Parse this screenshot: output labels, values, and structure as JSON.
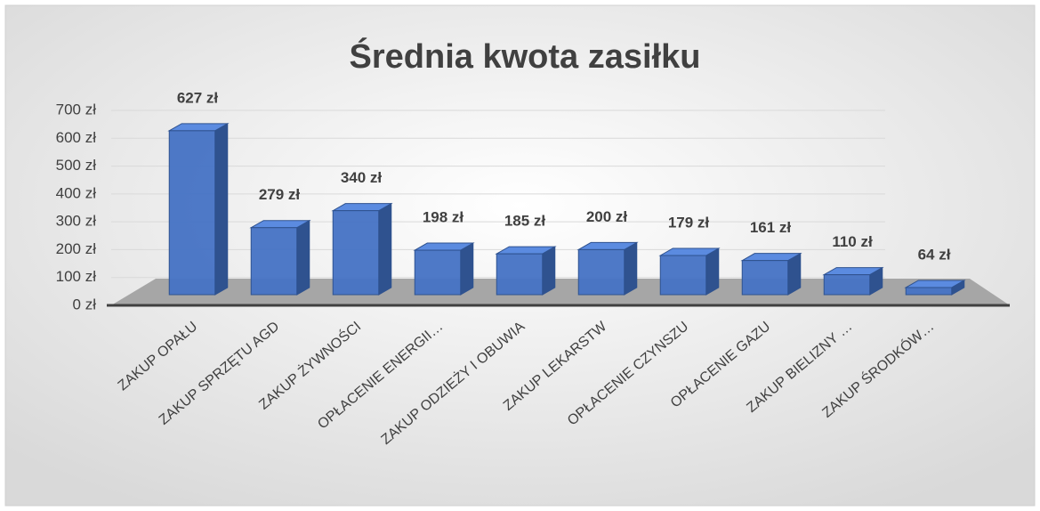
{
  "chart_data": {
    "type": "bar",
    "title": "Średnia kwota zasiłku",
    "categories": [
      "ZAKUP OPAŁU",
      "ZAKUP SPRZĘTU AGD",
      "ZAKUP ŻYWNOŚCI",
      "OPŁACENIE ENERGII…",
      "ZAKUP ODZIEŻY I OBUWIA",
      "ZAKUP LEKARSTW",
      "OPŁACENIE CZYNSZU",
      "OPŁACENIE GAZU",
      "ZAKUP BIELIZNY …",
      "ZAKUP ŚRODKÓW…"
    ],
    "values": [
      627,
      279,
      340,
      198,
      185,
      200,
      179,
      161,
      110,
      64
    ],
    "value_labels": [
      "627 zł",
      "279 zł",
      "340 zł",
      "198 zł",
      "185 zł",
      "200 zł",
      "179 zł",
      "161 zł",
      "110 zł",
      "64 zł"
    ],
    "color": "#4472c4",
    "ylim": [
      0,
      700
    ],
    "yticks": [
      {
        "value": 0,
        "label": "0 zł"
      },
      {
        "value": 100,
        "label": "100 zł"
      },
      {
        "value": 200,
        "label": "200 zł"
      },
      {
        "value": 300,
        "label": "300 zł"
      },
      {
        "value": 400,
        "label": "400 zł"
      },
      {
        "value": 500,
        "label": "500 zł"
      },
      {
        "value": 600,
        "label": "600 zł"
      },
      {
        "value": 700,
        "label": "700 zł"
      }
    ],
    "grid": true
  }
}
